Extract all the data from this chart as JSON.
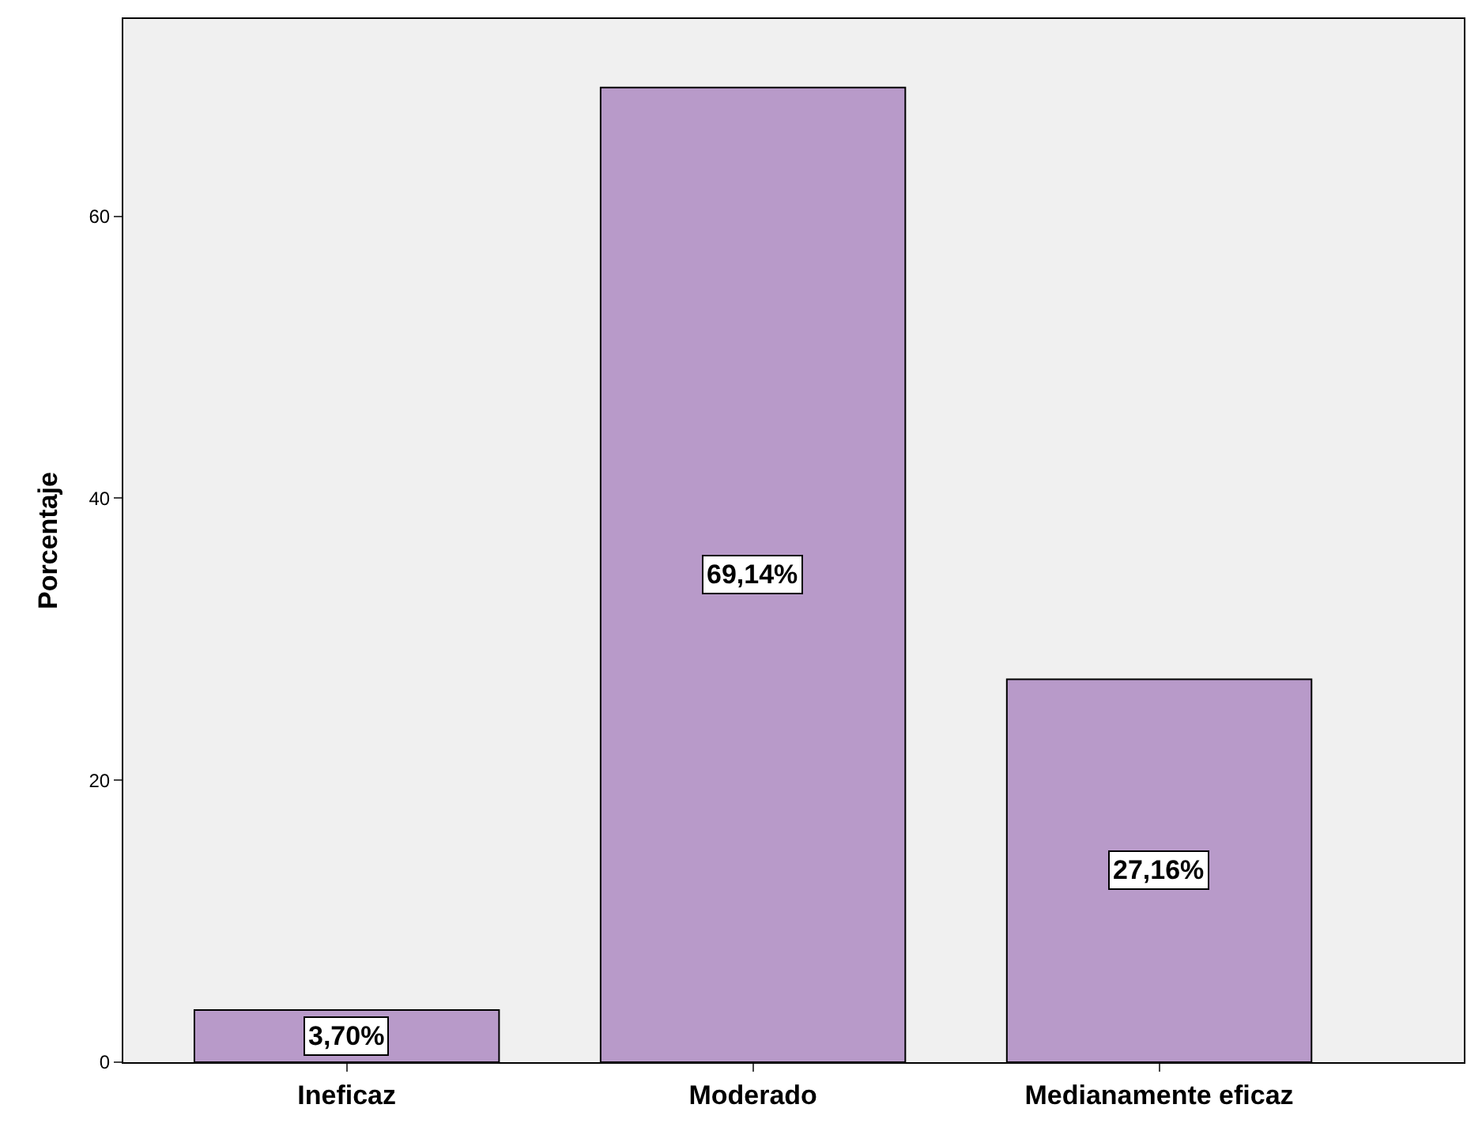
{
  "chart_data": {
    "type": "bar",
    "ylabel": "Porcentaje",
    "categories": [
      "Ineficaz",
      "Moderado",
      "Medianamente eficaz"
    ],
    "values": [
      3.7,
      69.14,
      27.16
    ],
    "value_labels": [
      "3,70%",
      "69,14%",
      "27,16%"
    ],
    "color": "#b89ac9",
    "ylim": [
      0,
      74
    ],
    "yticks": [
      0,
      20,
      40,
      60
    ],
    "grid": false
  }
}
